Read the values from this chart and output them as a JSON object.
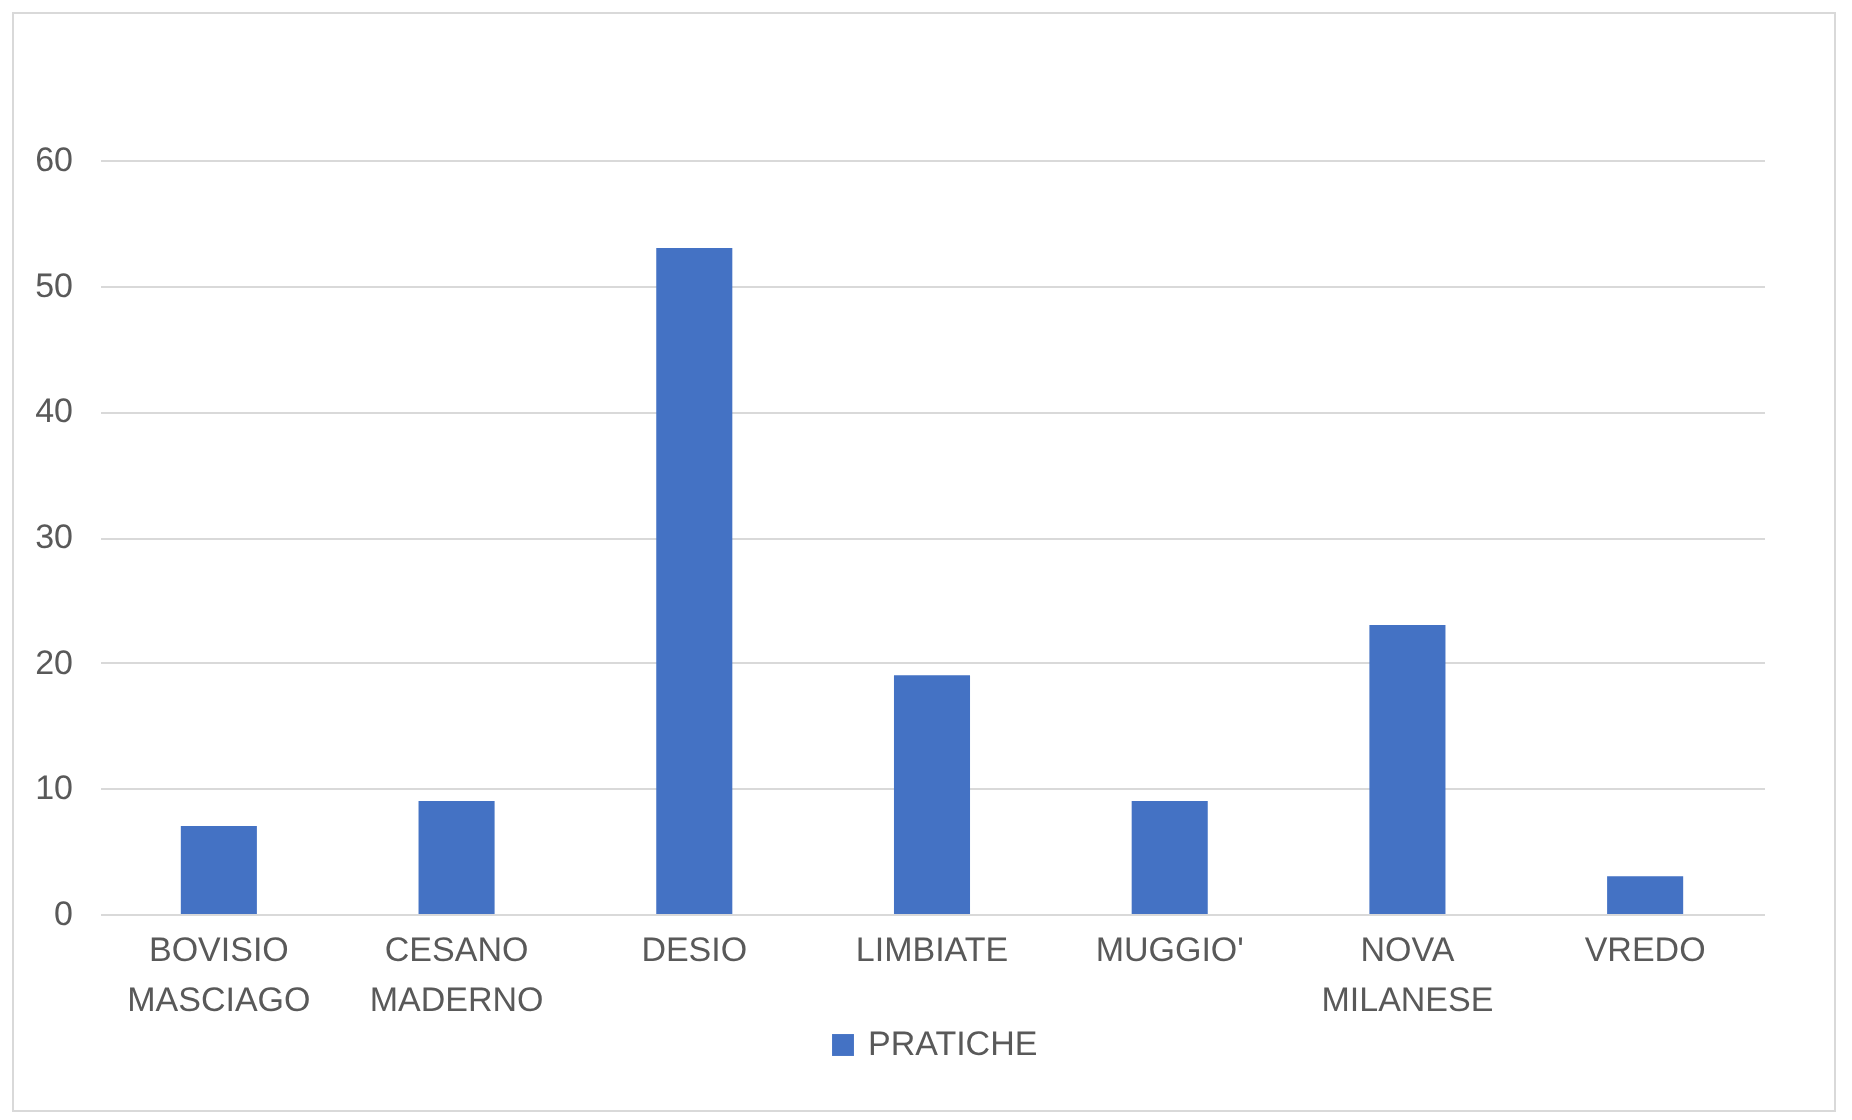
{
  "chart_data": {
    "type": "bar",
    "categories": [
      "BOVISIO MASCIAGO",
      "CESANO MADERNO",
      "DESIO",
      "LIMBIATE",
      "MUGGIO'",
      "NOVA MILANESE",
      "VREDO"
    ],
    "series": [
      {
        "name": "PRATICHE",
        "color": "#4472c4",
        "values": [
          7,
          9,
          53,
          19,
          9,
          23,
          3
        ]
      }
    ],
    "ylim": [
      0,
      60
    ],
    "yticks": [
      0,
      10,
      20,
      30,
      40,
      50,
      60
    ],
    "grid": "y",
    "legend": "bottom"
  }
}
